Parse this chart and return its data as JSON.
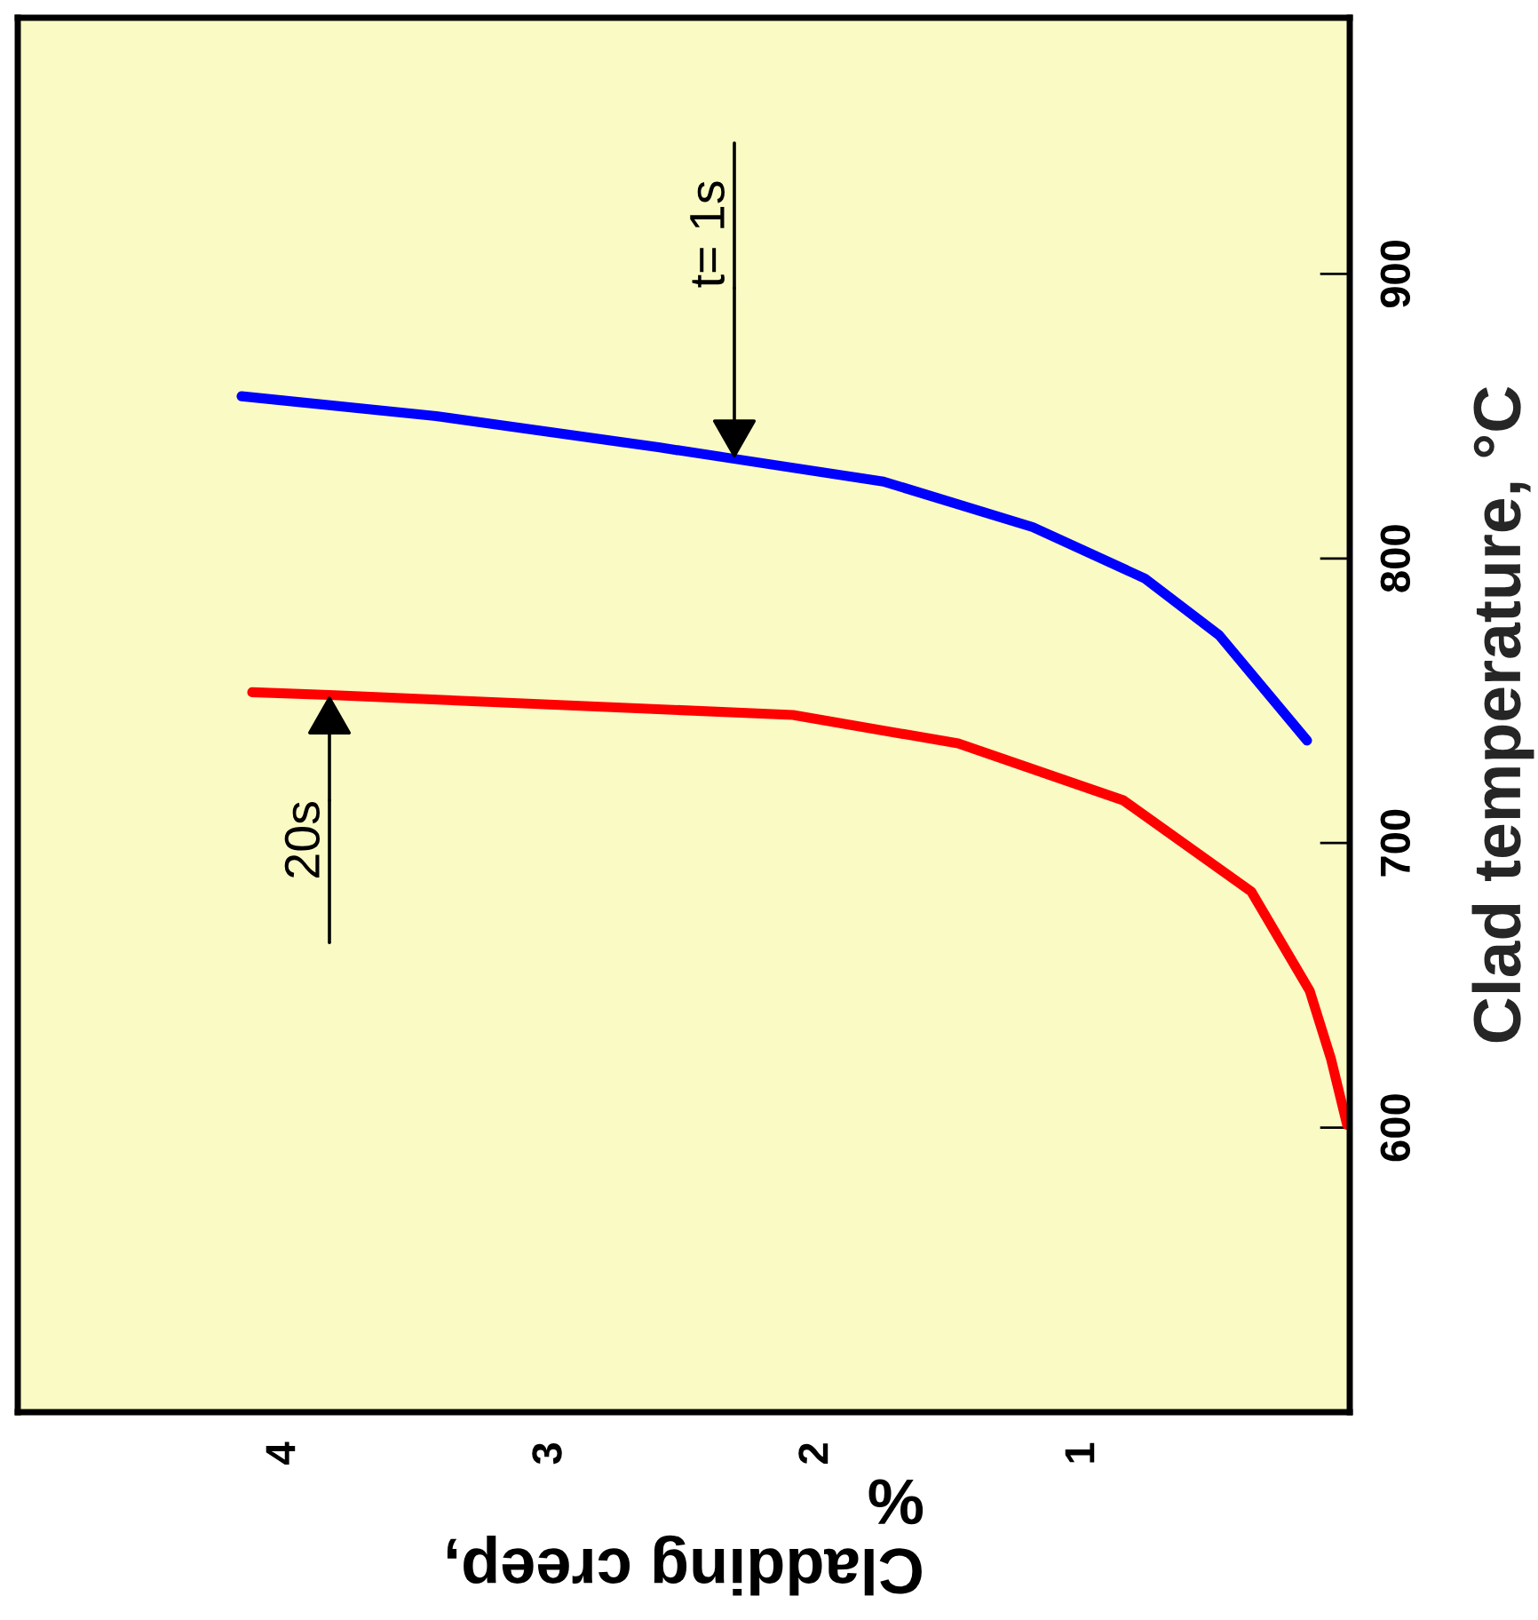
{
  "chart_data": {
    "type": "line",
    "xlabel": "Cladding creep,\n%",
    "ylabel": "Clad temperature, °C",
    "xlim": [
      5,
      0
    ],
    "xticks": [
      1,
      2,
      3,
      4
    ],
    "ylim": [
      500,
      990
    ],
    "yticks": [
      600,
      700,
      800,
      900
    ],
    "series": [
      {
        "color": "#0000ff",
        "x": [
          4.16,
          3.43,
          2.59,
          2.31,
          1.75,
          1.19,
          0.77,
          0.49,
          0.16
        ],
        "values": [
          857,
          850,
          839,
          835,
          827,
          811,
          793,
          773,
          736
        ]
      },
      {
        "color": "#ff0000",
        "x": [
          4.12,
          3.83,
          2.09,
          1.47,
          0.85,
          0.37,
          0.15,
          0.07,
          0.01
        ],
        "values": [
          753,
          752,
          745,
          735,
          715,
          683,
          648,
          624,
          601
        ]
      }
    ],
    "annotations": [
      {
        "text": "t= 1s",
        "x": 2.31,
        "y": 835
      },
      {
        "text": "20s",
        "x": 3.83,
        "y": 752
      }
    ],
    "grid": false,
    "legend": false,
    "marker": "none",
    "line_style": "solid"
  }
}
